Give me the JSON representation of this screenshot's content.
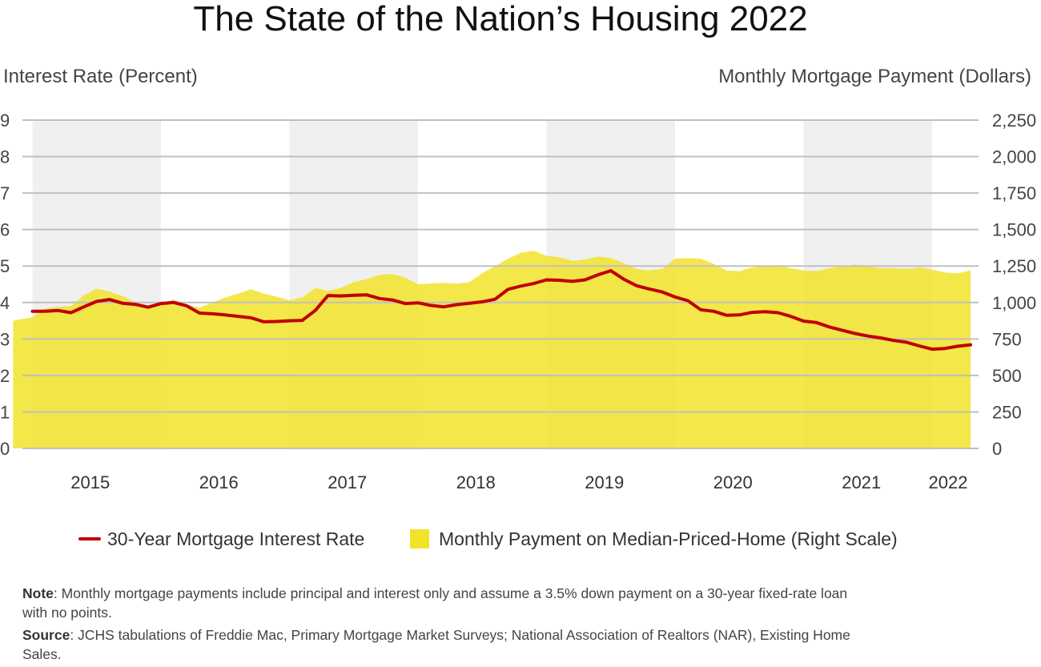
{
  "chart_data": {
    "type": "area+line",
    "title": "The State of the Nation’s Housing 2022",
    "ylabel_left": "Interest Rate (Percent)",
    "ylabel_right": "Monthly Mortgage Payment (Dollars)",
    "ylim_left": [
      0,
      9
    ],
    "ylim_right": [
      0,
      2250
    ],
    "yticks_left": [
      "0",
      "1",
      "2",
      "3",
      "4",
      "5",
      "6",
      "7",
      "8",
      "9"
    ],
    "yticks_right": [
      "0",
      "250",
      "500",
      "750",
      "1,000",
      "1,250",
      "1,500",
      "1,750",
      "2,000",
      "2,250"
    ],
    "years": [
      "2015",
      "2016",
      "2017",
      "2018",
      "2019",
      "2020",
      "2021",
      "2022"
    ],
    "grid": "horizontal",
    "shaded_years": [
      "2015",
      "2017",
      "2019",
      "2021"
    ],
    "legend_position": "bottom",
    "colors": {
      "rate_line": "#c00000",
      "payment_area": "#f2e32a",
      "shade": "#f0f0f0",
      "grid": "#c0c0c0"
    },
    "series": [
      {
        "name": "30-Year Mortgage Interest Rate",
        "axis": "left",
        "type": "line",
        "x": [
          2015.0,
          2015.1,
          2015.2,
          2015.3,
          2015.4,
          2015.5,
          2015.6,
          2015.7,
          2015.8,
          2015.9,
          2016.0,
          2016.1,
          2016.2,
          2016.3,
          2016.4,
          2016.5,
          2016.6,
          2016.7,
          2016.8,
          2016.9,
          2017.0,
          2017.1,
          2017.2,
          2017.3,
          2017.4,
          2017.5,
          2017.6,
          2017.7,
          2017.8,
          2017.9,
          2018.0,
          2018.1,
          2018.2,
          2018.3,
          2018.4,
          2018.5,
          2018.6,
          2018.7,
          2018.8,
          2018.9,
          2019.0,
          2019.1,
          2019.2,
          2019.3,
          2019.4,
          2019.5,
          2019.6,
          2019.7,
          2019.8,
          2019.9,
          2020.0,
          2020.1,
          2020.2,
          2020.3,
          2020.4,
          2020.5,
          2020.6,
          2020.7,
          2020.8,
          2020.9,
          2021.0,
          2021.1,
          2021.2,
          2021.3,
          2021.4,
          2021.5,
          2021.6,
          2021.7,
          2021.8,
          2021.9,
          2022.0,
          2022.1,
          2022.2,
          2022.3
        ],
        "values": [
          3.76,
          3.76,
          3.78,
          3.72,
          3.88,
          4.03,
          4.08,
          3.98,
          3.95,
          3.87,
          3.97,
          4.0,
          3.91,
          3.71,
          3.69,
          3.66,
          3.62,
          3.58,
          3.47,
          3.48,
          3.5,
          3.51,
          3.78,
          4.19,
          4.18,
          4.2,
          4.21,
          4.11,
          4.07,
          3.97,
          3.99,
          3.92,
          3.88,
          3.94,
          3.98,
          4.02,
          4.09,
          4.36,
          4.45,
          4.52,
          4.62,
          4.61,
          4.58,
          4.62,
          4.76,
          4.87,
          4.64,
          4.46,
          4.37,
          4.29,
          4.15,
          4.05,
          3.8,
          3.76,
          3.65,
          3.66,
          3.73,
          3.75,
          3.72,
          3.62,
          3.49,
          3.45,
          3.33,
          3.24,
          3.15,
          3.08,
          3.03,
          2.96,
          2.91,
          2.81,
          2.72,
          2.74,
          2.8,
          2.84
        ]
      },
      {
        "name": "Monthly Payment on Median-Priced-Home (Right Scale)",
        "axis": "right",
        "type": "area",
        "x": [
          2014.85,
          2015.0,
          2015.1,
          2015.2,
          2015.3,
          2015.4,
          2015.5,
          2015.6,
          2015.7,
          2015.8,
          2015.9,
          2016.0,
          2016.1,
          2016.2,
          2016.3,
          2016.4,
          2016.5,
          2016.6,
          2016.7,
          2016.8,
          2016.9,
          2017.0,
          2017.1,
          2017.2,
          2017.3,
          2017.4,
          2017.5,
          2017.6,
          2017.7,
          2017.8,
          2017.9,
          2018.0,
          2018.1,
          2018.2,
          2018.3,
          2018.4,
          2018.5,
          2018.6,
          2018.7,
          2018.8,
          2018.9,
          2019.0,
          2019.1,
          2019.2,
          2019.3,
          2019.4,
          2019.5,
          2019.6,
          2019.7,
          2019.8,
          2019.9,
          2020.0,
          2020.1,
          2020.2,
          2020.3,
          2020.4,
          2020.5,
          2020.6,
          2020.7,
          2020.8,
          2020.9,
          2021.0,
          2021.1,
          2021.2,
          2021.3,
          2021.4,
          2021.5,
          2021.6,
          2021.7,
          2021.8,
          2021.9,
          2022.0,
          2022.1,
          2022.2,
          2022.3
        ],
        "values": [
          875,
          900,
          960,
          970,
          975,
          1050,
          1095,
          1075,
          1045,
          1000,
          980,
          995,
          1020,
          985,
          965,
          1000,
          1035,
          1060,
          1090,
          1060,
          1040,
          1015,
          1035,
          1100,
          1080,
          1100,
          1140,
          1160,
          1190,
          1195,
          1170,
          1125,
          1130,
          1135,
          1130,
          1140,
          1200,
          1250,
          1300,
          1340,
          1355,
          1320,
          1310,
          1285,
          1295,
          1315,
          1305,
          1270,
          1230,
          1220,
          1230,
          1300,
          1305,
          1300,
          1265,
          1220,
          1215,
          1240,
          1250,
          1255,
          1235,
          1220,
          1215,
          1235,
          1250,
          1260,
          1250,
          1235,
          1235,
          1230,
          1240,
          1225,
          1205,
          1200,
          1220
        ]
      }
    ]
  },
  "notes": {
    "note_label": "Note",
    "note_text": ": Monthly mortgage payments include principal and interest only and assume a 3.5% down payment on a 30-year fixed-rate loan with no points.",
    "source_label": "Source",
    "source_text": ": JCHS tabulations of Freddie Mac, Primary Mortgage Market Surveys; National Association of Realtors (NAR), Existing Home Sales."
  }
}
